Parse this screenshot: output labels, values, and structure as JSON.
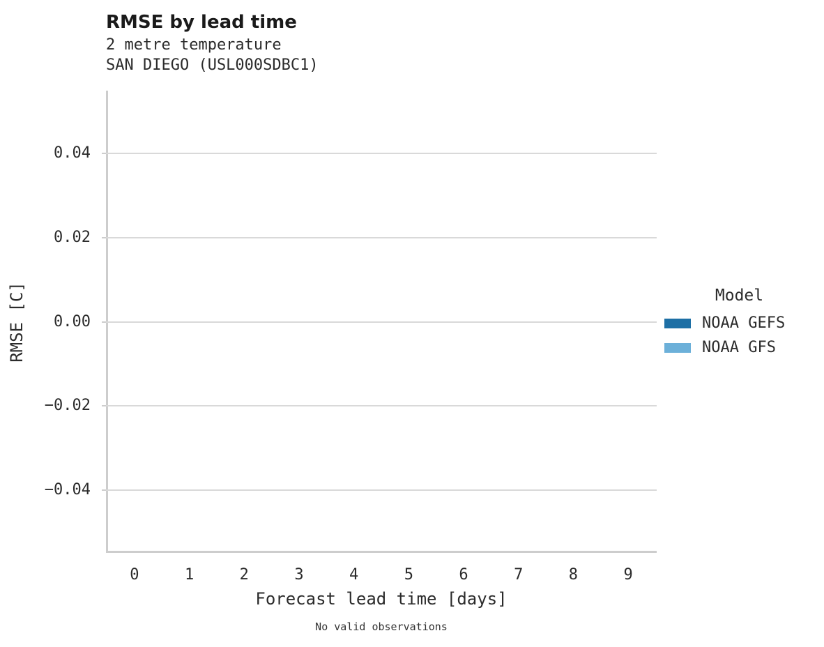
{
  "title": "RMSE by lead time",
  "subtitle_lines": [
    "2 metre temperature",
    "SAN DIEGO (USL000SDBC1)"
  ],
  "caption": "No valid observations",
  "axes": {
    "x": {
      "label": "Forecast lead time [days]",
      "ticks": [
        "0",
        "1",
        "2",
        "3",
        "4",
        "5",
        "6",
        "7",
        "8",
        "9"
      ],
      "tick_values": [
        0,
        1,
        2,
        3,
        4,
        5,
        6,
        7,
        8,
        9
      ]
    },
    "y": {
      "label": "RMSE [C]",
      "ticks": [
        "0.04",
        "0.02",
        "0.00",
        "−0.02",
        "−0.04"
      ],
      "tick_values": [
        0.04,
        0.02,
        0.0,
        -0.02,
        -0.04
      ]
    }
  },
  "legend": {
    "title": "Model",
    "items": [
      {
        "label": "NOAA GEFS",
        "color": "#1d6fa5"
      },
      {
        "label": "NOAA GFS",
        "color": "#6cb0d9"
      }
    ]
  },
  "colors": {
    "noaa_gefs": "#1d6fa5",
    "noaa_gfs": "#6cb0d9",
    "gridline": "#d9d9d9",
    "axis_spine": "#cdcdcd"
  },
  "chart_data": {
    "type": "line",
    "title": "RMSE by lead time",
    "subtitle": [
      "2 metre temperature",
      "SAN DIEGO (USL000SDBC1)"
    ],
    "xlabel": "Forecast lead time [days]",
    "ylabel": "RMSE [C]",
    "x_ticks": [
      0,
      1,
      2,
      3,
      4,
      5,
      6,
      7,
      8,
      9
    ],
    "y_ticks": [
      0.04,
      0.02,
      0.0,
      -0.02,
      -0.04
    ],
    "xlim": [
      -0.52,
      9.52
    ],
    "ylim": [
      -0.055,
      0.055
    ],
    "grid": "horizontal-only",
    "legend_position": "right",
    "legend_title": "Model",
    "series": [
      {
        "name": "NOAA GEFS",
        "color": "#1d6fa5",
        "x": [],
        "y": []
      },
      {
        "name": "NOAA GFS",
        "color": "#6cb0d9",
        "x": [],
        "y": []
      }
    ],
    "annotation": "No valid observations"
  }
}
